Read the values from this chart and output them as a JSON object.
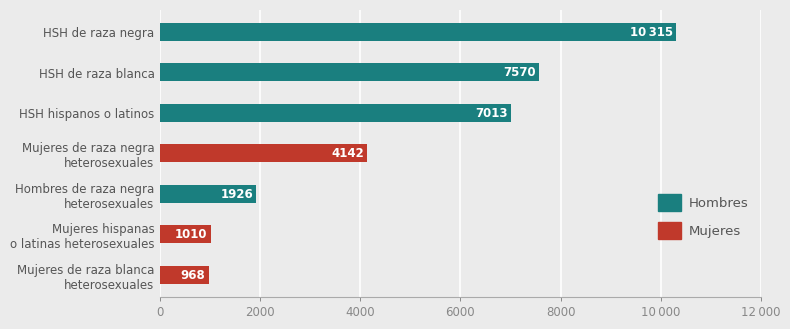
{
  "categories": [
    "HSH de raza negra",
    "HSH de raza blanca",
    "HSH hispanos o latinos",
    "Mujeres de raza negra\nheterosexuales",
    "Hombres de raza negra\nheterosexuales",
    "Mujeres hispanas\no latinas heterosexuales",
    "Mujeres de raza blanca\nheterosexuales"
  ],
  "values": [
    10315,
    7570,
    7013,
    4142,
    1926,
    1010,
    968
  ],
  "colors": [
    "#1a7f7f",
    "#1a7f7f",
    "#1a7f7f",
    "#c0392b",
    "#1a7f7f",
    "#c0392b",
    "#c0392b"
  ],
  "bar_color_hombres": "#1a7f7f",
  "bar_color_mujeres": "#c0392b",
  "background_color": "#ebebeb",
  "xlim": [
    0,
    12000
  ],
  "xticks": [
    0,
    2000,
    4000,
    6000,
    8000,
    10000,
    12000
  ],
  "xtick_labels": [
    "0",
    "2000",
    "4000",
    "6000",
    "8000",
    "10 000",
    "12 000"
  ],
  "legend_hombres": "Hombres",
  "legend_mujeres": "Mujeres",
  "value_labels": [
    "10 315",
    "7570",
    "7013",
    "4142",
    "1926",
    "1010",
    "968"
  ],
  "label_fontsize": 8.5,
  "tick_fontsize": 8.5,
  "legend_fontsize": 9.5,
  "bar_height": 0.45
}
